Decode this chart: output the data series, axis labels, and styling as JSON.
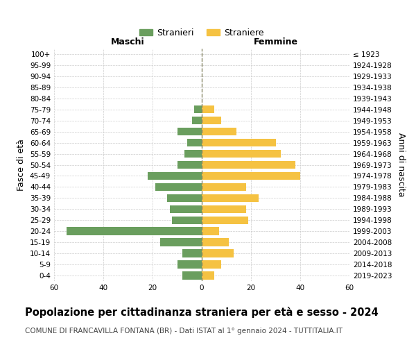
{
  "age_groups": [
    "0-4",
    "5-9",
    "10-14",
    "15-19",
    "20-24",
    "25-29",
    "30-34",
    "35-39",
    "40-44",
    "45-49",
    "50-54",
    "55-59",
    "60-64",
    "65-69",
    "70-74",
    "75-79",
    "80-84",
    "85-89",
    "90-94",
    "95-99",
    "100+"
  ],
  "birth_years": [
    "2019-2023",
    "2014-2018",
    "2009-2013",
    "2004-2008",
    "1999-2003",
    "1994-1998",
    "1989-1993",
    "1984-1988",
    "1979-1983",
    "1974-1978",
    "1969-1973",
    "1964-1968",
    "1959-1963",
    "1954-1958",
    "1949-1953",
    "1944-1948",
    "1939-1943",
    "1934-1938",
    "1929-1933",
    "1924-1928",
    "≤ 1923"
  ],
  "males": [
    8,
    10,
    8,
    17,
    55,
    12,
    13,
    14,
    19,
    22,
    10,
    7,
    6,
    10,
    4,
    3,
    0,
    0,
    0,
    0,
    0
  ],
  "females": [
    5,
    8,
    13,
    11,
    7,
    19,
    18,
    23,
    18,
    40,
    38,
    32,
    30,
    14,
    8,
    5,
    0,
    0,
    0,
    0,
    0
  ],
  "male_color": "#6a9e5e",
  "female_color": "#f5c242",
  "grid_color": "#cccccc",
  "background_color": "#ffffff",
  "title": "Popolazione per cittadinanza straniera per età e sesso - 2024",
  "subtitle": "COMUNE DI FRANCAVILLA FONTANA (BR) - Dati ISTAT al 1° gennaio 2024 - TUTTITALIA.IT",
  "xlabel_left": "Maschi",
  "xlabel_right": "Femmine",
  "ylabel_left": "Fasce di età",
  "ylabel_right": "Anni di nascita",
  "legend_male": "Stranieri",
  "legend_female": "Straniere",
  "xlim": 60,
  "title_fontsize": 10.5,
  "subtitle_fontsize": 7.5,
  "tick_fontsize": 7.5,
  "label_fontsize": 9,
  "dashed_line_color": "#888866"
}
